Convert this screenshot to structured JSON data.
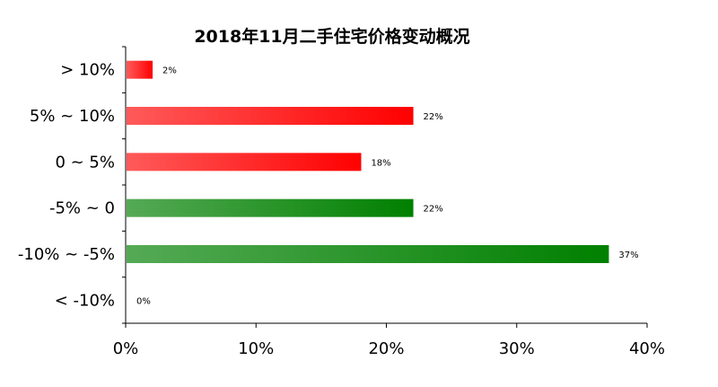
{
  "chart_data": {
    "type": "bar",
    "orientation": "horizontal",
    "title": "2018年11月二手住宅价格变动概况",
    "categories": [
      "> 10%",
      "5% ~ 10%",
      "0 ~ 5%",
      "-5% ~ 0",
      "-10% ~ -5%",
      "< -10%"
    ],
    "values": [
      2,
      22,
      18,
      22,
      37,
      0
    ],
    "data_labels": [
      "2%",
      "22%",
      "18%",
      "22%",
      "37%",
      "0%"
    ],
    "bar_colors": [
      "red",
      "red",
      "red",
      "green",
      "green",
      "green"
    ],
    "x_ticks": [
      "0%",
      "10%",
      "20%",
      "30%",
      "40%"
    ],
    "xlim": [
      0,
      40
    ],
    "grid": false,
    "legend": "none"
  },
  "colors": {
    "red_light": "#ff5a5a",
    "red_dark": "#ff0000",
    "green_light": "#55aa55",
    "green_dark": "#008000"
  }
}
